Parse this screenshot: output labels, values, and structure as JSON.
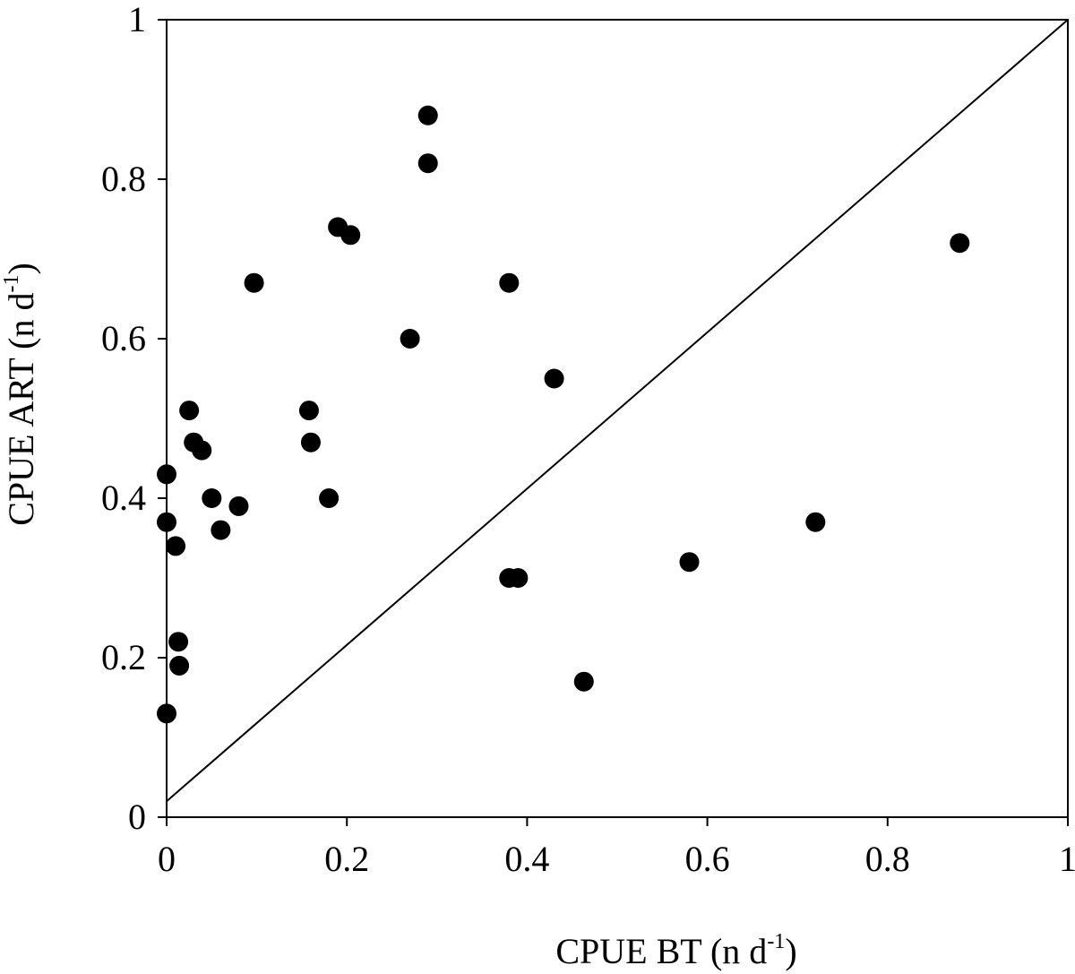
{
  "chart_data": {
    "type": "scatter",
    "title": "",
    "xlabel": {
      "main": "CPUE BT (n d",
      "sup": "-1",
      "end": ")"
    },
    "ylabel": {
      "main": "CPUE ART (n d",
      "sup": "-1",
      "end": ")"
    },
    "xlim": [
      0,
      1
    ],
    "ylim": [
      0,
      1
    ],
    "x_ticks": [
      0,
      0.2,
      0.4,
      0.6,
      0.8,
      1
    ],
    "x_tick_labels": [
      "0",
      "0.2",
      "0.4",
      "0.6",
      "0.8",
      "1"
    ],
    "y_ticks": [
      0,
      0.2,
      0.4,
      0.6,
      0.8,
      1
    ],
    "y_tick_labels": [
      "0",
      "0.2",
      "0.4",
      "0.6",
      "0.8",
      "1"
    ],
    "grid": false,
    "legend": "none",
    "marker_color": "#000000",
    "reference_line": {
      "from": [
        0,
        0.02
      ],
      "to": [
        1,
        1
      ]
    },
    "points": [
      {
        "x": 0.0,
        "y": 0.13
      },
      {
        "x": 0.0,
        "y": 0.37
      },
      {
        "x": 0.0,
        "y": 0.43
      },
      {
        "x": 0.01,
        "y": 0.34
      },
      {
        "x": 0.013,
        "y": 0.22
      },
      {
        "x": 0.014,
        "y": 0.19
      },
      {
        "x": 0.025,
        "y": 0.51
      },
      {
        "x": 0.03,
        "y": 0.47
      },
      {
        "x": 0.039,
        "y": 0.46
      },
      {
        "x": 0.05,
        "y": 0.4
      },
      {
        "x": 0.06,
        "y": 0.36
      },
      {
        "x": 0.08,
        "y": 0.39
      },
      {
        "x": 0.097,
        "y": 0.67
      },
      {
        "x": 0.158,
        "y": 0.51
      },
      {
        "x": 0.16,
        "y": 0.47
      },
      {
        "x": 0.18,
        "y": 0.4
      },
      {
        "x": 0.19,
        "y": 0.74
      },
      {
        "x": 0.204,
        "y": 0.73
      },
      {
        "x": 0.27,
        "y": 0.6
      },
      {
        "x": 0.29,
        "y": 0.88
      },
      {
        "x": 0.29,
        "y": 0.82
      },
      {
        "x": 0.38,
        "y": 0.67
      },
      {
        "x": 0.38,
        "y": 0.3
      },
      {
        "x": 0.39,
        "y": 0.3
      },
      {
        "x": 0.43,
        "y": 0.55
      },
      {
        "x": 0.463,
        "y": 0.17
      },
      {
        "x": 0.58,
        "y": 0.32
      },
      {
        "x": 0.72,
        "y": 0.37
      },
      {
        "x": 0.88,
        "y": 0.72
      }
    ]
  }
}
